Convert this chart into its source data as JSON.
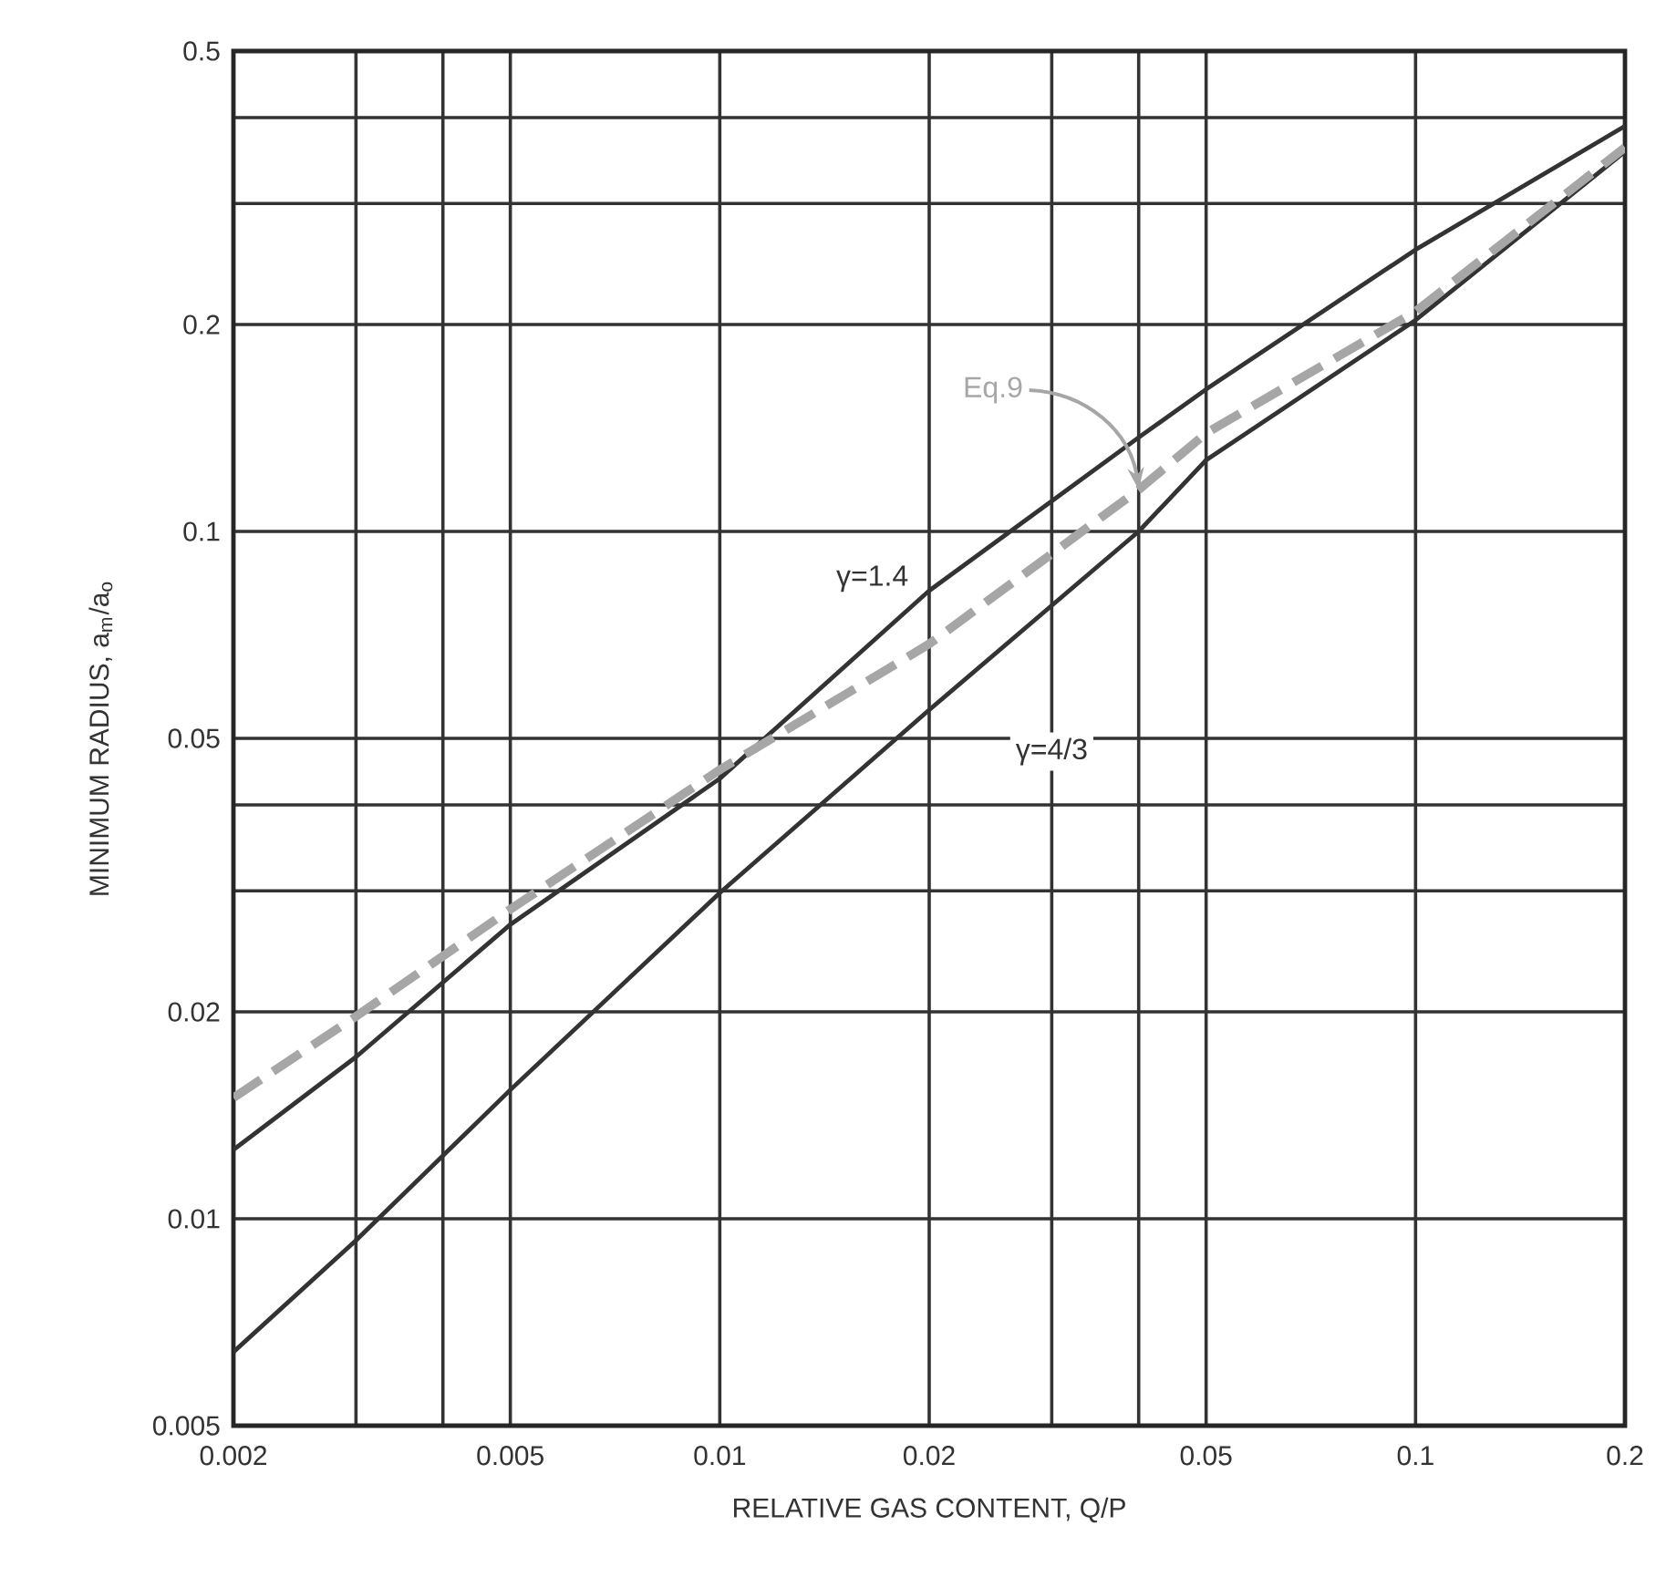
{
  "chart_data": {
    "type": "line",
    "xlabel": "RELATIVE GAS CONTENT, Q/P",
    "ylabel": "MINIMUM RADIUS, a$_{m}$/a$_{o}$",
    "log": "xy",
    "grid": true,
    "legend": false,
    "marker": "none",
    "xlim": [
      0.002,
      0.2
    ],
    "ylim": [
      0.005,
      0.5
    ],
    "xticks": [
      0.002,
      {
        "value": 0.003,
        "label": null
      },
      {
        "value": 0.004,
        "label": null
      },
      0.005,
      0.01,
      0.02,
      {
        "value": 0.03,
        "label": null
      },
      {
        "value": 0.04,
        "label": null
      },
      0.05,
      0.1,
      0.2
    ],
    "yticks": [
      0.005,
      0.01,
      0.02,
      {
        "value": 0.03,
        "label": null
      },
      {
        "value": 0.04,
        "label": null
      },
      0.05,
      0.1,
      0.2,
      {
        "value": 0.3,
        "label": null
      },
      {
        "value": 0.4,
        "label": null
      },
      0.5
    ],
    "x": [
      0.002,
      0.003,
      0.005,
      0.01,
      0.02,
      0.04,
      0.05,
      0.1,
      0.2
    ],
    "series": [
      {
        "name": "γ=1.4",
        "color": "#333333",
        "line_style": "solid",
        "values": [
          0.0126,
          0.0172,
          0.0268,
          0.0437,
          0.082,
          0.137,
          0.161,
          0.257,
          0.389
        ]
      },
      {
        "name": "γ=4/3",
        "color": "#333333",
        "line_style": "solid",
        "values": [
          0.0064,
          0.0093,
          0.0154,
          0.0298,
          0.055,
          0.1,
          0.127,
          0.203,
          0.357
        ]
      },
      {
        "name": "Eq.9",
        "color": "#a6a6a6",
        "line_style": "dashed",
        "values": [
          0.015,
          0.0197,
          0.0282,
          0.045,
          0.0686,
          0.115,
          0.139,
          0.209,
          0.362
        ]
      }
    ]
  }
}
